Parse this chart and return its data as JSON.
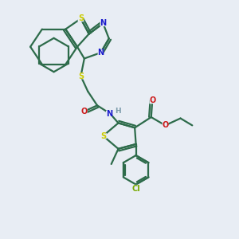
{
  "background_color": "#e8edf4",
  "bond_color": "#2d6b4a",
  "bond_width": 1.6,
  "atom_colors": {
    "S": "#cccc00",
    "N": "#1a1acc",
    "O": "#cc1a1a",
    "Cl": "#77aa00",
    "H": "#7a9aaa"
  },
  "figsize": [
    3.0,
    3.0
  ],
  "dpi": 100
}
